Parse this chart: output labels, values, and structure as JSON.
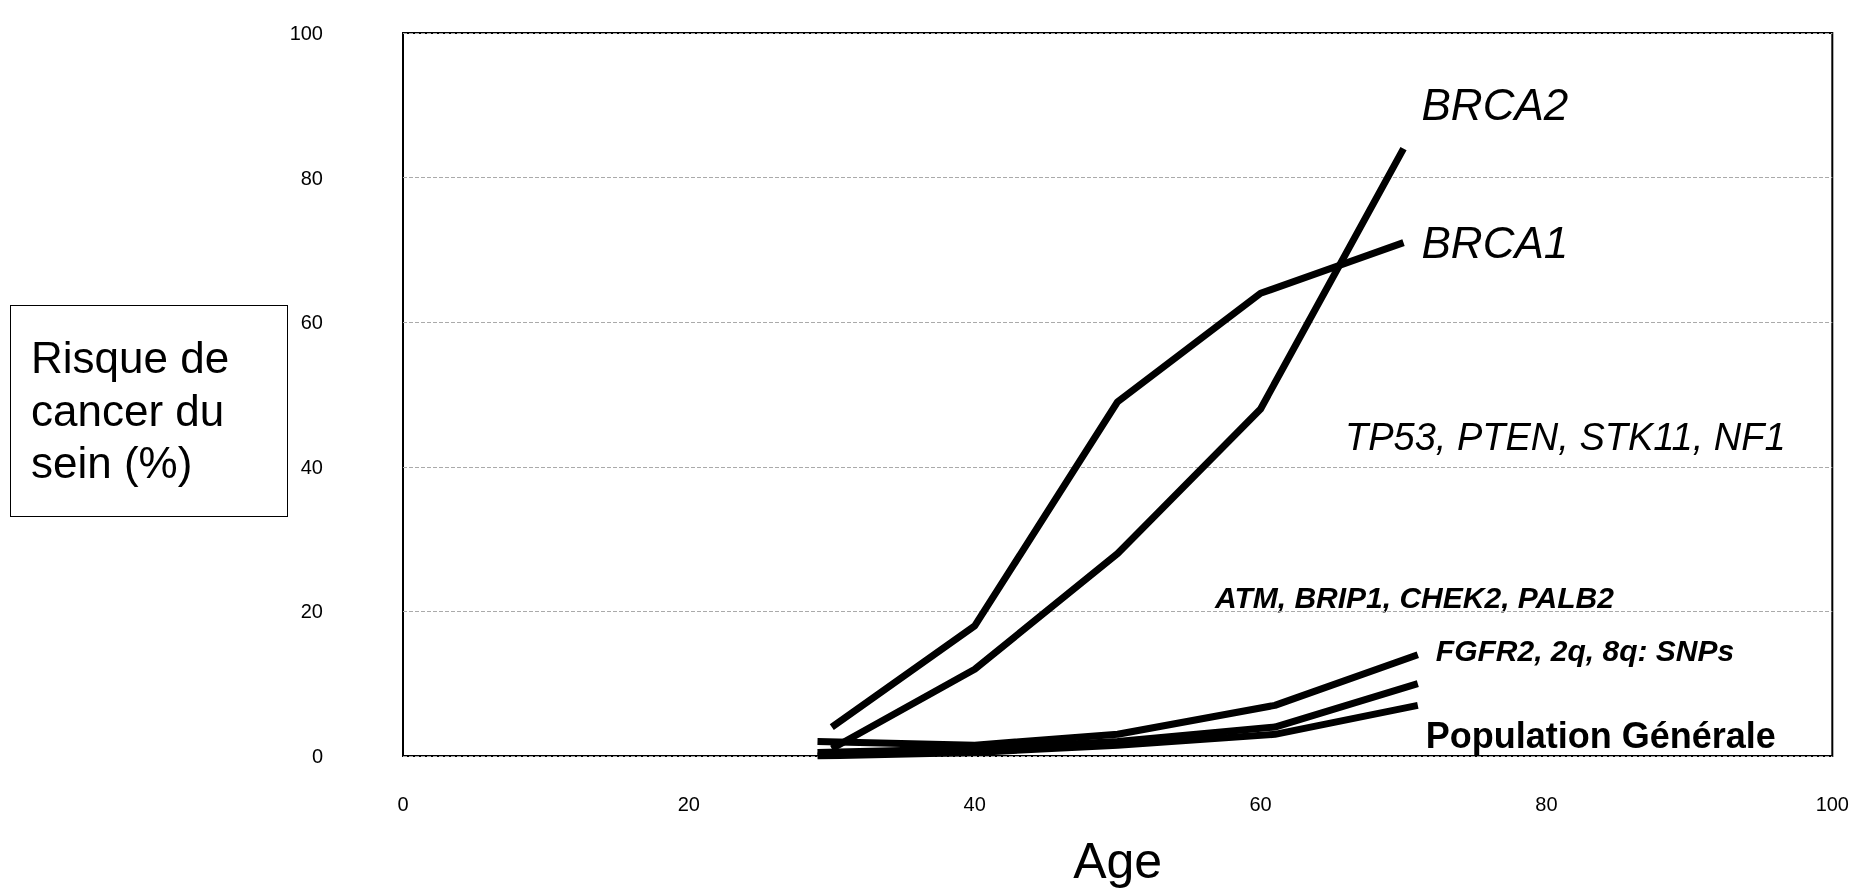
{
  "chart_data": {
    "type": "line",
    "xlabel": "Age",
    "ylabel": "Risque de cancer du sein (%)",
    "xlim": [
      0,
      100
    ],
    "xticks": [
      0,
      20,
      40,
      60,
      80,
      100
    ],
    "ylim": [
      0,
      100
    ],
    "yticks": [
      0,
      20,
      40,
      60,
      80,
      100
    ],
    "grid": "y",
    "legend": false,
    "marker": "none",
    "line_style": "solid",
    "series": [
      {
        "name": "BRCA2",
        "color": "#000000",
        "x": [
          30,
          40,
          50,
          60,
          70
        ],
        "values": [
          1,
          12,
          28,
          48,
          84
        ]
      },
      {
        "name": "BRCA1",
        "color": "#000000",
        "x": [
          30,
          40,
          50,
          60,
          70
        ],
        "values": [
          4,
          18,
          49,
          64,
          71
        ]
      },
      {
        "name": "FGFR2, 2q, 8q: SNPs",
        "color": "#000000",
        "x": [
          29,
          40,
          50,
          61,
          71
        ],
        "values": [
          2,
          1.5,
          3,
          7,
          14
        ]
      },
      {
        "color": "#000000",
        "x": [
          29,
          40,
          50,
          61,
          71
        ],
        "values": [
          0.5,
          1,
          2,
          4,
          10
        ]
      },
      {
        "name": "Population Générale",
        "color": "#000000",
        "x": [
          29,
          40,
          50,
          61,
          71
        ],
        "values": [
          0,
          0.5,
          1.5,
          3,
          7
        ]
      }
    ],
    "annotations": [
      "TP53, PTEN, STK11, NF1",
      "ATM, BRIP1, CHEK2, PALB2"
    ]
  }
}
